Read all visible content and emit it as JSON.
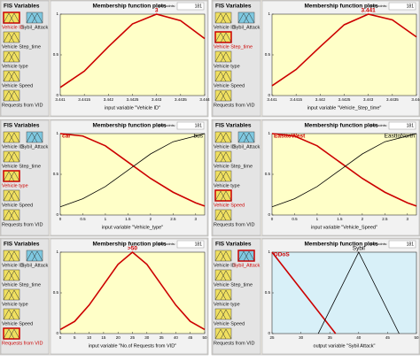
{
  "panels": [
    {
      "fis_title": "FIS Variables",
      "variables": [
        "Vehicle ID",
        "Sybil_Attack",
        "Vehicle Step_time",
        "Vehicle type",
        "Vehicle Speed",
        "Requests from VID"
      ],
      "selected": 0,
      "plot_title": "Membership function plots",
      "plot_points_label": "plot points:",
      "plot_points": 181
    },
    {
      "fis_title": "FIS Variables",
      "variables": [
        "Vehicle ID",
        "Sybil_Attack",
        "Vehicle Step_time",
        "Vehicle type",
        "Vehicle Speed",
        "Requests from VID"
      ],
      "selected": 2,
      "plot_title": "Membership function plots",
      "plot_points_label": "plot points:",
      "plot_points": 181
    },
    {
      "fis_title": "FIS Variables",
      "variables": [
        "Vehicle ID",
        "Sybil_Attack",
        "Vehicle Step_time",
        "Vehicle type",
        "Vehicle Speed",
        "Requests from VID"
      ],
      "selected": 3,
      "plot_title": "Membership function plots",
      "plot_points_label": "plot points:",
      "plot_points": 181
    },
    {
      "fis_title": "FIS Variables",
      "variables": [
        "Vehicle ID",
        "Sybil_Attack",
        "Vehicle Step_time",
        "Vehicle type",
        "Vehicle Speed",
        "Requests from VID"
      ],
      "selected": 4,
      "plot_title": "Membership function plots",
      "plot_points_label": "plot points:",
      "plot_points": 181
    },
    {
      "fis_title": "FIS Variables",
      "variables": [
        "Vehicle ID",
        "Sybil_Attack",
        "Vehicle Step_time",
        "Vehicle type",
        "Vehicle Speed",
        "Requests from VID"
      ],
      "selected": 5,
      "plot_title": "Membership function plots",
      "plot_points_label": "plot points:",
      "plot_points": 181
    },
    {
      "fis_title": "FIS Variables",
      "variables": [
        "Vehicle ID",
        "Sybil_Attack",
        "Vehicle Step_time",
        "Vehicle type",
        "Vehicle Speed",
        "Requests from VID"
      ],
      "selected": 1,
      "plot_title": "Membership function plots",
      "plot_points_label": "plot points:",
      "plot_points": 181
    }
  ],
  "chart_data": [
    {
      "type": "line",
      "xlabel": "input variable \"Vehicle ID\"",
      "background": "#ffffc8",
      "xlim": [
        3.441,
        3.444
      ],
      "ylim": [
        0,
        1
      ],
      "xticks": [
        3.441,
        3.4415,
        3.442,
        3.4425,
        3.443,
        3.4435,
        3.444
      ],
      "yticks": [
        0,
        0.5,
        1
      ],
      "series": [
        {
          "name": "3",
          "color": "#cc0000",
          "x": [
            3.441,
            3.4415,
            3.442,
            3.4425,
            3.443,
            3.4435,
            3.444
          ],
          "values": [
            0.1,
            0.3,
            0.6,
            0.88,
            1,
            0.92,
            0.7
          ]
        }
      ]
    },
    {
      "type": "line",
      "xlabel": "input variable \"Vehicle_Step_time\"",
      "background": "#ffffc8",
      "xlim": [
        3.441,
        3.444
      ],
      "ylim": [
        0,
        1
      ],
      "xticks": [
        3.441,
        3.4415,
        3.442,
        3.4425,
        3.443,
        3.4435,
        3.444
      ],
      "yticks": [
        0,
        0.5,
        1
      ],
      "series": [
        {
          "name": "3.441",
          "color": "#cc0000",
          "x": [
            3.441,
            3.4415,
            3.442,
            3.4425,
            3.443,
            3.4435,
            3.444
          ],
          "values": [
            0.12,
            0.32,
            0.6,
            0.87,
            1,
            0.93,
            0.72
          ]
        }
      ]
    },
    {
      "type": "line",
      "xlabel": "input variable \"Vehicle_type\"",
      "background": "#ffffc8",
      "xlim": [
        0,
        3.2
      ],
      "ylim": [
        0,
        1
      ],
      "xticks": [
        0,
        0.5,
        1,
        1.5,
        2,
        2.5,
        3
      ],
      "yticks": [
        0,
        0.5,
        1
      ],
      "series": [
        {
          "name": "car",
          "color": "#cc0000",
          "x": [
            0,
            0.5,
            1,
            1.5,
            2,
            2.5,
            3,
            3.2
          ],
          "values": [
            1,
            0.97,
            0.85,
            0.65,
            0.45,
            0.28,
            0.15,
            0.11
          ]
        },
        {
          "name": "bus",
          "color": "#000000",
          "x": [
            0,
            0.5,
            1,
            1.5,
            2,
            2.5,
            3,
            3.2
          ],
          "values": [
            0.1,
            0.2,
            0.35,
            0.55,
            0.75,
            0.9,
            0.97,
            1
          ]
        }
      ]
    },
    {
      "type": "line",
      "xlabel": "input variable \"Vehicle_Speed\"",
      "background": "#ffffc8",
      "xlim": [
        0,
        3.2
      ],
      "ylim": [
        0,
        1
      ],
      "xticks": [
        0,
        0.5,
        1,
        1.5,
        2,
        2.5,
        3
      ],
      "yticks": [
        0,
        0.5,
        1
      ],
      "series": [
        {
          "name": "EasttoWest",
          "color": "#cc0000",
          "x": [
            0,
            0.5,
            1,
            1.5,
            2,
            2.5,
            3,
            3.2
          ],
          "values": [
            1,
            0.97,
            0.85,
            0.65,
            0.45,
            0.28,
            0.15,
            0.11
          ]
        },
        {
          "name": "EasttoNorth",
          "color": "#000000",
          "x": [
            0,
            0.5,
            1,
            1.5,
            2,
            2.5,
            3,
            3.2
          ],
          "values": [
            0.1,
            0.2,
            0.35,
            0.55,
            0.75,
            0.9,
            0.97,
            1
          ]
        }
      ]
    },
    {
      "type": "line",
      "xlabel": "input variable \"No.of Requests from VID\"",
      "background": "#ffffc8",
      "xlim": [
        0,
        50
      ],
      "ylim": [
        0,
        1
      ],
      "xticks": [
        0,
        5,
        10,
        15,
        20,
        25,
        30,
        35,
        40,
        45,
        50
      ],
      "yticks": [
        0,
        0.5,
        1
      ],
      "series": [
        {
          "name": ">50",
          "color": "#cc0000",
          "x": [
            0,
            5,
            10,
            15,
            20,
            25,
            30,
            35,
            40,
            45,
            50
          ],
          "values": [
            0.05,
            0.15,
            0.35,
            0.6,
            0.85,
            1,
            0.85,
            0.6,
            0.35,
            0.15,
            0.05
          ]
        }
      ]
    },
    {
      "type": "line",
      "xlabel": "output variable \"Sybil Attack\"",
      "background": "#d8f0f8",
      "xlim": [
        25,
        50
      ],
      "ylim": [
        0,
        1
      ],
      "xticks": [
        25,
        30,
        35,
        40,
        45,
        50
      ],
      "yticks": [
        0,
        0.5,
        1
      ],
      "series": [
        {
          "name": "DDoS",
          "color": "#cc0000",
          "x": [
            25,
            36
          ],
          "values": [
            1,
            0
          ]
        },
        {
          "name": "Sybil",
          "color": "#000000",
          "x": [
            33,
            40,
            47
          ],
          "values": [
            0,
            1,
            0
          ]
        }
      ]
    }
  ]
}
